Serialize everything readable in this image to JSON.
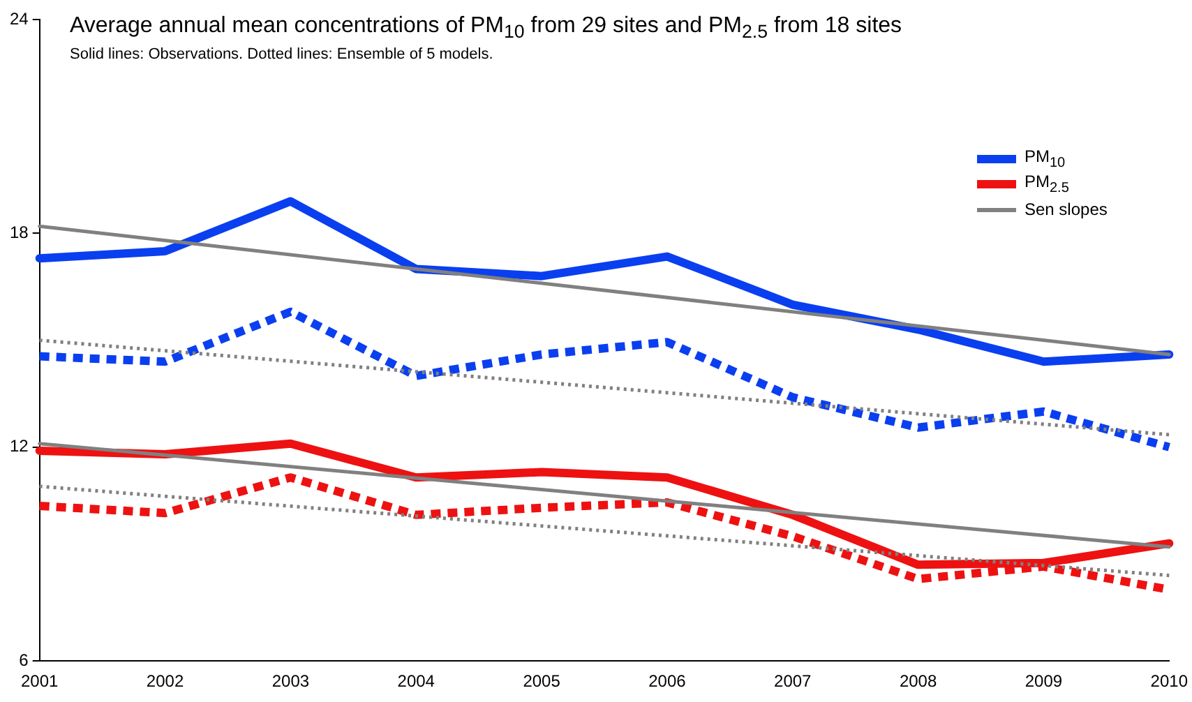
{
  "chart_data": {
    "type": "line",
    "title": "Average annual mean concentrations of PM$_{10}$ from 29 sites and PM$_{2.5}$ from 18 sites",
    "subtitle": "Solid lines: Observations. Dotted lines: Ensemble of 5 models.",
    "categories": [
      "2001",
      "2002",
      "2003",
      "2004",
      "2005",
      "2006",
      "2007",
      "2008",
      "2009",
      "2010"
    ],
    "ylim": [
      6,
      24
    ],
    "yticks": [
      6,
      12,
      18,
      24
    ],
    "grid": false,
    "legend": "top right",
    "marker": "none",
    "series": [
      {
        "name": "PM$_{10}$",
        "color": "#0a3ff0",
        "line_style": "solid",
        "values": [
          17.3,
          17.5,
          18.9,
          17.0,
          16.8,
          17.35,
          16.0,
          15.3,
          14.4,
          14.6
        ]
      },
      {
        "color": "#0a3ff0",
        "line_style": "dotted",
        "values": [
          14.55,
          14.4,
          15.8,
          14.0,
          14.6,
          14.95,
          13.4,
          12.55,
          13.0,
          12.0
        ]
      },
      {
        "name": "PM$_{2.5}$",
        "color": "#ee1111",
        "line_style": "solid",
        "values": [
          11.9,
          11.8,
          12.1,
          11.15,
          11.3,
          11.15,
          10.1,
          8.7,
          8.75,
          9.3
        ]
      },
      {
        "color": "#ee1111",
        "line_style": "dotted",
        "values": [
          10.35,
          10.15,
          11.15,
          10.1,
          10.3,
          10.45,
          9.5,
          8.3,
          8.65,
          8.0
        ]
      },
      {
        "name": "Sen slopes",
        "color": "#808080",
        "line_style": "solid",
        "values": [
          18.2,
          null,
          null,
          null,
          null,
          null,
          null,
          null,
          null,
          14.6
        ]
      },
      {
        "color": "#808080",
        "line_style": "solid",
        "values": [
          12.1,
          null,
          null,
          null,
          null,
          null,
          null,
          null,
          null,
          9.2
        ]
      },
      {
        "color": "#808080",
        "line_style": "dotted",
        "values": [
          15.0,
          null,
          null,
          null,
          null,
          null,
          null,
          null,
          null,
          12.35
        ]
      },
      {
        "color": "#808080",
        "line_style": "dotted",
        "values": [
          10.9,
          null,
          null,
          null,
          null,
          null,
          null,
          null,
          null,
          8.4
        ]
      }
    ]
  }
}
